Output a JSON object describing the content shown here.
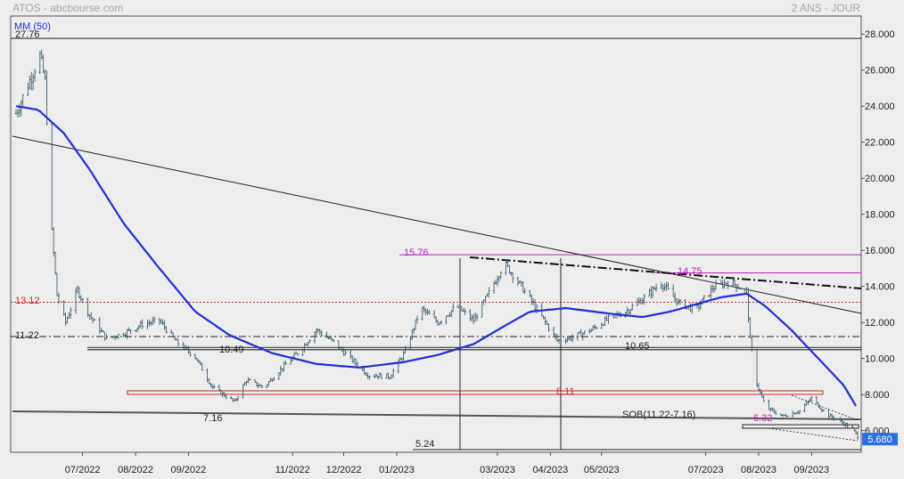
{
  "header": {
    "title": "ATOS - abcbourse.com",
    "period": "2 ANS - JOUR"
  },
  "indicator": {
    "label": "MM (50)",
    "color": "#1f2fd6"
  },
  "chart_data": {
    "type": "candlestick",
    "ylim": [
      4.8,
      29.0
    ],
    "y_ticks": [
      "28.000",
      "26.000",
      "24.000",
      "22.000",
      "20.000",
      "18.000",
      "16.000",
      "14.000",
      "12.000",
      "10.000",
      "8.000",
      "6.000"
    ],
    "y_tick_values": [
      28,
      26,
      24,
      22,
      20,
      18,
      16,
      14,
      12,
      10,
      8,
      6
    ],
    "x_labels": [
      "07/2022",
      "08/2022",
      "09/2022",
      "11/2022",
      "12/2022",
      "01/2023",
      "03/2023",
      "04/2023",
      "05/2023",
      "07/2023",
      "08/2023",
      "09/2023"
    ],
    "x_label_dates": [
      "2022-07-01",
      "2022-08-01",
      "2022-09-01",
      "2022-11-01",
      "2022-12-01",
      "2023-01-01",
      "2023-03-01",
      "2023-04-01",
      "2023-05-01",
      "2023-07-01",
      "2023-08-01",
      "2023-09-01"
    ],
    "last_price": "5.680",
    "price_keypoints": [
      [
        "2022-05-23",
        23.6
      ],
      [
        "2022-05-30",
        25.2
      ],
      [
        "2022-06-06",
        26.8
      ],
      [
        "2022-06-09",
        25.4
      ],
      [
        "2022-06-13",
        17.0
      ],
      [
        "2022-06-16",
        13.5
      ],
      [
        "2022-06-21",
        12.0
      ],
      [
        "2022-06-28",
        13.8
      ],
      [
        "2022-07-05",
        12.4
      ],
      [
        "2022-07-15",
        11.1
      ],
      [
        "2022-07-25",
        11.4
      ],
      [
        "2022-08-05",
        11.9
      ],
      [
        "2022-08-15",
        12.1
      ],
      [
        "2022-08-25",
        10.9
      ],
      [
        "2022-09-05",
        10.1
      ],
      [
        "2022-09-15",
        8.4
      ],
      [
        "2022-09-28",
        7.6
      ],
      [
        "2022-10-05",
        8.8
      ],
      [
        "2022-10-15",
        8.4
      ],
      [
        "2022-10-25",
        9.4
      ],
      [
        "2022-11-05",
        10.4
      ],
      [
        "2022-11-15",
        11.6
      ],
      [
        "2022-11-25",
        10.9
      ],
      [
        "2022-12-05",
        10.0
      ],
      [
        "2022-12-15",
        9.1
      ],
      [
        "2022-12-28",
        9.0
      ],
      [
        "2023-01-06",
        10.4
      ],
      [
        "2023-01-15",
        12.8
      ],
      [
        "2023-01-25",
        12.0
      ],
      [
        "2023-02-05",
        12.9
      ],
      [
        "2023-02-15",
        12.1
      ],
      [
        "2023-02-25",
        13.8
      ],
      [
        "2023-03-05",
        15.3
      ],
      [
        "2023-03-15",
        14.0
      ],
      [
        "2023-03-25",
        12.6
      ],
      [
        "2023-04-05",
        11.0
      ],
      [
        "2023-04-15",
        11.2
      ],
      [
        "2023-04-25",
        11.6
      ],
      [
        "2023-05-05",
        12.2
      ],
      [
        "2023-05-15",
        12.6
      ],
      [
        "2023-05-25",
        13.3
      ],
      [
        "2023-06-05",
        14.2
      ],
      [
        "2023-06-15",
        13.1
      ],
      [
        "2023-06-25",
        12.7
      ],
      [
        "2023-07-05",
        13.9
      ],
      [
        "2023-07-15",
        14.3
      ],
      [
        "2023-07-25",
        13.7
      ],
      [
        "2023-07-27",
        11.0
      ],
      [
        "2023-07-31",
        8.6
      ],
      [
        "2023-08-05",
        7.3
      ],
      [
        "2023-08-15",
        6.8
      ],
      [
        "2023-08-25",
        7.1
      ],
      [
        "2023-09-01",
        7.8
      ],
      [
        "2023-09-10",
        6.9
      ],
      [
        "2023-09-18",
        6.5
      ],
      [
        "2023-09-25",
        6.1
      ],
      [
        "2023-09-28",
        5.68
      ]
    ],
    "ma50_keypoints": [
      [
        "2022-05-23",
        24.0
      ],
      [
        "2022-06-05",
        23.8
      ],
      [
        "2022-06-20",
        22.5
      ],
      [
        "2022-07-05",
        20.5
      ],
      [
        "2022-07-25",
        17.5
      ],
      [
        "2022-08-15",
        15.0
      ],
      [
        "2022-09-05",
        12.6
      ],
      [
        "2022-09-25",
        11.3
      ],
      [
        "2022-10-20",
        10.3
      ],
      [
        "2022-11-15",
        9.7
      ],
      [
        "2022-12-10",
        9.5
      ],
      [
        "2023-01-05",
        9.8
      ],
      [
        "2023-01-25",
        10.2
      ],
      [
        "2023-02-15",
        10.8
      ],
      [
        "2023-03-05",
        11.8
      ],
      [
        "2023-03-20",
        12.6
      ],
      [
        "2023-04-10",
        12.8
      ],
      [
        "2023-05-05",
        12.5
      ],
      [
        "2023-05-25",
        12.3
      ],
      [
        "2023-06-10",
        12.6
      ],
      [
        "2023-06-25",
        13.0
      ],
      [
        "2023-07-10",
        13.4
      ],
      [
        "2023-07-25",
        13.6
      ],
      [
        "2023-08-05",
        12.9
      ],
      [
        "2023-08-20",
        11.6
      ],
      [
        "2023-09-05",
        10.0
      ],
      [
        "2023-09-20",
        8.5
      ],
      [
        "2023-09-28",
        7.2
      ]
    ],
    "annotations": [
      {
        "text": "27.76",
        "color": "#222222"
      },
      {
        "text": "13.12",
        "color": "#e02020"
      },
      {
        "text": "11.22",
        "color": "#222222"
      },
      {
        "text": "10.49",
        "color": "#222222"
      },
      {
        "text": "7.16",
        "color": "#222222"
      },
      {
        "text": "5.24",
        "color": "#222222"
      },
      {
        "text": "15.76",
        "color": "#c020c0"
      },
      {
        "text": "14.75",
        "color": "#c020c0"
      },
      {
        "text": "10.65",
        "color": "#222222"
      },
      {
        "text": "8.11",
        "color": "#e02020"
      },
      {
        "text": "SOB(11.22-7.16)",
        "color": "#222222"
      },
      {
        "text": "6.32",
        "color": "#c020c0"
      }
    ]
  }
}
